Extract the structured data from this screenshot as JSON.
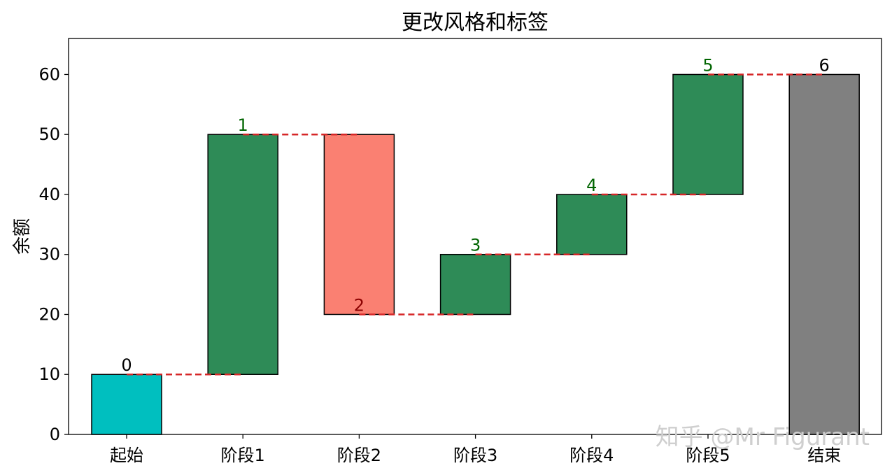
{
  "chart_data": {
    "type": "bar",
    "title": "更改风格和标签",
    "ylabel": "余额",
    "xlabel": "",
    "categories": [
      "起始",
      "阶段1",
      "阶段2",
      "阶段3",
      "阶段4",
      "阶段5",
      "结束"
    ],
    "bars": [
      {
        "category": "起始",
        "bottom": 0,
        "top": 10,
        "label": "0",
        "color": "#00bfbf",
        "label_color": "#000000"
      },
      {
        "category": "阶段1",
        "bottom": 10,
        "top": 50,
        "label": "1",
        "color": "#2e8b57",
        "label_color": "#006400"
      },
      {
        "category": "阶段2",
        "bottom": 20,
        "top": 50,
        "label": "2",
        "color": "#fa8072",
        "label_color": "#8b0000"
      },
      {
        "category": "阶段3",
        "bottom": 20,
        "top": 30,
        "label": "3",
        "color": "#2e8b57",
        "label_color": "#006400"
      },
      {
        "category": "阶段4",
        "bottom": 30,
        "top": 40,
        "label": "4",
        "color": "#2e8b57",
        "label_color": "#006400"
      },
      {
        "category": "阶段5",
        "bottom": 40,
        "top": 60,
        "label": "5",
        "color": "#2e8b57",
        "label_color": "#006400"
      },
      {
        "category": "结束",
        "bottom": 0,
        "top": 60,
        "label": "6",
        "color": "#808080",
        "label_color": "#000000"
      }
    ],
    "label_positions": [
      10,
      50,
      20,
      30,
      40,
      60,
      60
    ],
    "connectors": {
      "values": [
        10,
        50,
        20,
        30,
        40,
        60
      ],
      "color": "#d62728",
      "style": "dashed"
    },
    "ylim": [
      0,
      66
    ],
    "yticks": [
      0,
      10,
      20,
      30,
      40,
      50,
      60
    ],
    "grid": false
  },
  "watermark": "知乎 @Mr Figurant"
}
